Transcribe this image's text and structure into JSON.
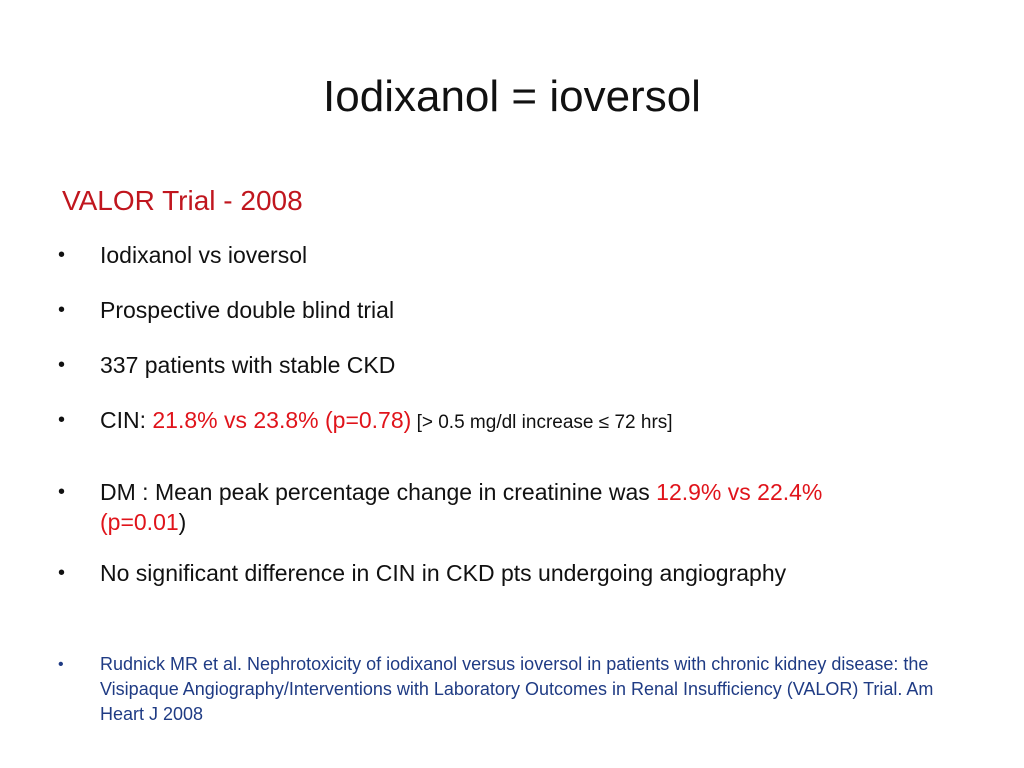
{
  "title": "Iodixanol = ioversol",
  "subtitle": "VALOR  Trial  - 2008",
  "bullets": {
    "b1": "Iodixanol vs ioversol",
    "b2": "Prospective double blind trial",
    "b3": "337 patients with stable CKD",
    "b4": {
      "prefix": "CIN: ",
      "highlight": "21.8% vs 23.8% (p=0.78)",
      "note": " [> 0.5 mg/dl increase ≤ 72 hrs]"
    },
    "b5": {
      "prefix": " DM : Mean peak percentage change in creatinine was ",
      "highlight1": "12.9% vs 22.4%",
      "highlight2": "(p=0.01",
      "suffix": ")"
    },
    "b6": "No significant difference in CIN in CKD pts undergoing angiography"
  },
  "reference": "Rudnick MR et al. Nephrotoxicity of iodixanol versus ioversol in patients with chronic kidney disease: the Visipaque Angiography/Interventions with Laboratory Outcomes in Renal Insufficiency (VALOR) Trial. Am Heart J 2008",
  "bullet_char": "•"
}
